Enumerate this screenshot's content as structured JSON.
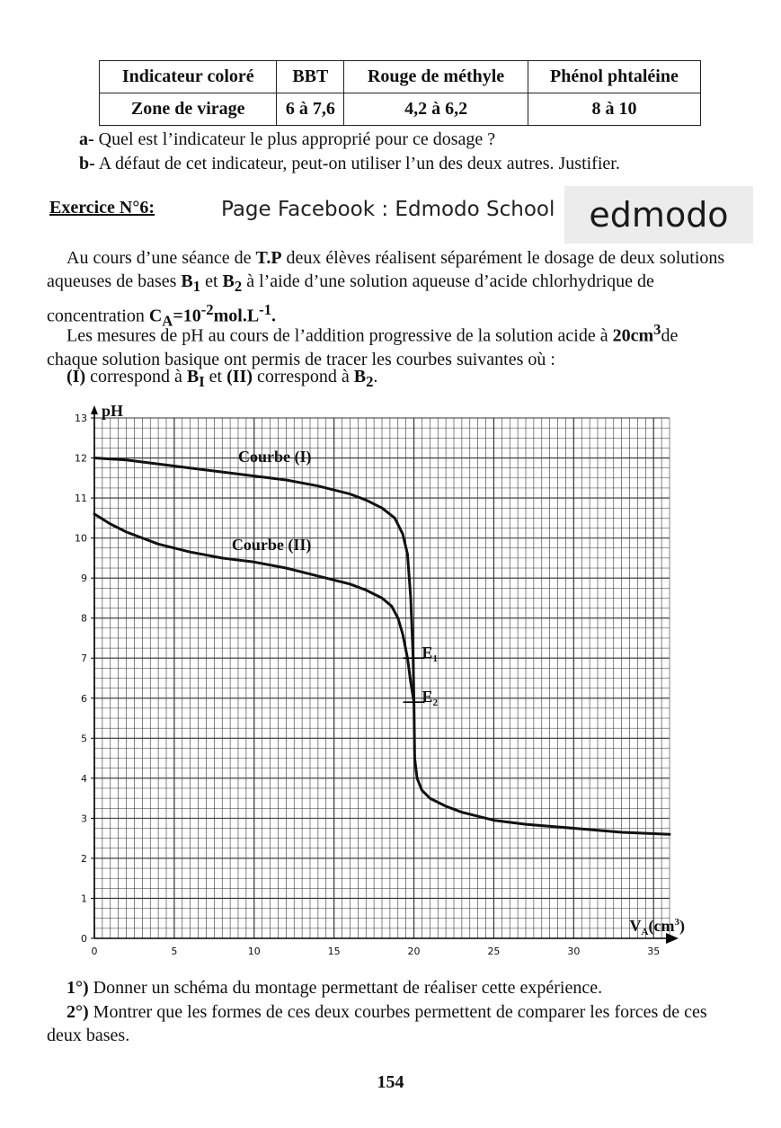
{
  "table": {
    "headers": [
      "Indicateur coloré",
      "BBT",
      "Rouge de méthyle",
      "Phénol phtaléine"
    ],
    "row": [
      "Zone de virage",
      "6 à 7,6",
      "4,2 à 6,2",
      "8 à 10"
    ]
  },
  "questions": {
    "a_label": "a-",
    "a_text": " Quel est l’indicateur le plus approprié pour ce dosage ?",
    "b_label": "b-",
    "b_text": " A défaut de cet indicateur, peut-on utiliser l’un des deux autres. Justifier."
  },
  "exercise": {
    "title": "Exercice N°6:",
    "facebook": "Page Facebook : Edmodo School",
    "logo": "edmodo",
    "p1_a": "Au cours d’une séance de ",
    "p1_b": "T.P",
    "p1_c": " deux élèves réalisent séparément le dosage de deux solutions aqueuses de bases ",
    "p1_d": "B",
    "p1_d_sub": "1",
    "p1_e": " et ",
    "p1_f": "B",
    "p1_f_sub": "2",
    "p1_g": " à l’aide d’une solution aqueuse d’acide chlorhydrique de concentration ",
    "p1_h": "C",
    "p1_h_sub": "A",
    "p1_i": "=10",
    "p1_i_sup": "-2",
    "p1_j": "mol.L",
    "p1_j_sup": "-1",
    "p1_k": ".",
    "p2_a": "Les mesures de pH au cours de l’addition progressive de la solution acide à ",
    "p2_b": "20cm",
    "p2_b_sup": "3",
    "p2_c": "de chaque solution basique ont permis de tracer les courbes suivantes où :",
    "p3_a": "(I)",
    "p3_b": " correspond à ",
    "p3_c": "B",
    "p3_c_sub": "I",
    "p3_d": " et ",
    "p3_e": "(II)",
    "p3_f": " correspond à ",
    "p3_g": "B",
    "p3_g_sub": "2",
    "p3_h": "."
  },
  "final_questions": {
    "q1_label": "1°)",
    "q1_text": " Donner un schéma du montage permettant de réaliser cette expérience.",
    "q2_label": "2°)",
    "q2_text": " Montrer que les formes de ces deux courbes permettent de comparer les forces de ces deux bases."
  },
  "page_number": "154",
  "chart_data": {
    "type": "line",
    "title": "",
    "ylabel": "pH",
    "xlabel": "V",
    "xlabel_sub": "A",
    "xlabel_unit": "(cm",
    "xlabel_unit_sup": "3",
    "xlabel_unit_end": ")",
    "xlim": [
      0,
      36
    ],
    "ylim": [
      0,
      13
    ],
    "x_ticks": [
      0,
      5,
      10,
      15,
      20,
      25,
      30,
      35
    ],
    "y_ticks": [
      0,
      1,
      2,
      3,
      4,
      5,
      6,
      7,
      8,
      9,
      10,
      11,
      12,
      13
    ],
    "grid": true,
    "series": [
      {
        "name": "Courbe (I)",
        "x": [
          0,
          2,
          4,
          6,
          8,
          10,
          12,
          14,
          16,
          17,
          18,
          18.8,
          19.3,
          19.6,
          19.8,
          19.95,
          20.0,
          20.05,
          20.2,
          20.5,
          21,
          22,
          23,
          25,
          27,
          30,
          33,
          36
        ],
        "y": [
          12.0,
          11.95,
          11.85,
          11.75,
          11.65,
          11.55,
          11.45,
          11.3,
          11.1,
          10.95,
          10.75,
          10.5,
          10.1,
          9.6,
          8.5,
          7.0,
          5.9,
          4.5,
          4.0,
          3.7,
          3.5,
          3.3,
          3.15,
          2.95,
          2.85,
          2.75,
          2.65,
          2.6
        ]
      },
      {
        "name": "Courbe (II)",
        "x": [
          0,
          1,
          2,
          4,
          6,
          8,
          10,
          12,
          14,
          16,
          17,
          18,
          18.6,
          19.0,
          19.3,
          19.6,
          19.8,
          20.0
        ],
        "y": [
          10.6,
          10.35,
          10.15,
          9.85,
          9.65,
          9.5,
          9.4,
          9.25,
          9.05,
          8.85,
          8.7,
          8.5,
          8.3,
          8.0,
          7.6,
          7.0,
          6.4,
          5.9
        ]
      }
    ],
    "annotations": [
      {
        "text": "Courbe (I)",
        "x": 9.0,
        "y": 11.9
      },
      {
        "text": "Courbe (II)",
        "x": 8.6,
        "y": 9.7
      },
      {
        "text": "E",
        "sub": "1",
        "x": 20.5,
        "y": 7.0
      },
      {
        "text": "E",
        "sub": "2",
        "x": 20.5,
        "y": 5.9
      }
    ],
    "points": [
      {
        "label": "E1",
        "x": 20.0,
        "y": 7.0
      },
      {
        "label": "E2",
        "x": 20.0,
        "y": 5.9
      }
    ]
  }
}
